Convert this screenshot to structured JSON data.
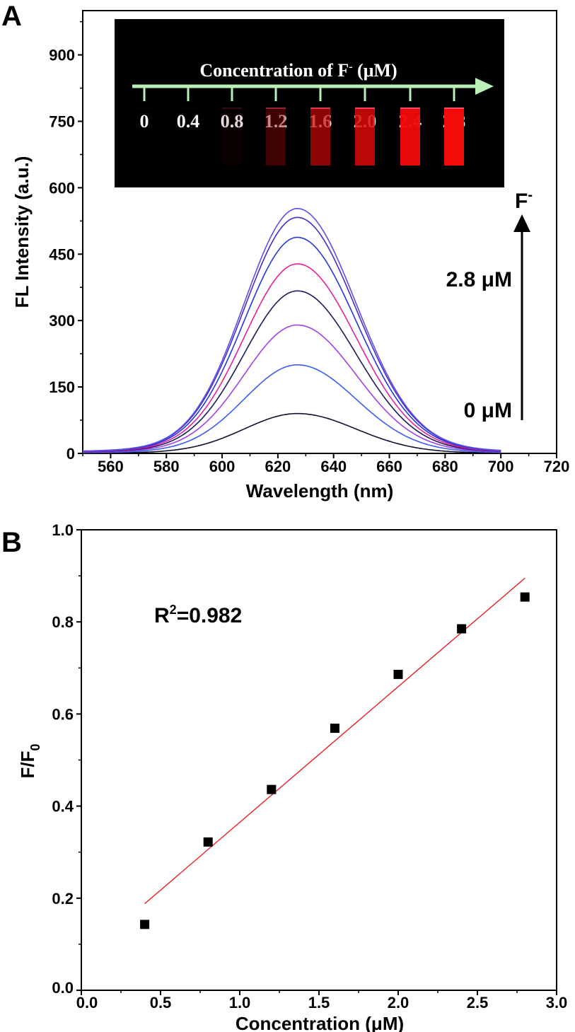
{
  "chart_data": [
    {
      "type": "line",
      "panel_label": "A",
      "xlabel": "Wavelength (nm)",
      "ylabel": "FL Intensity (a.u.)",
      "xlim": [
        550,
        720
      ],
      "ylim": [
        0,
        1000
      ],
      "xticks": [
        560,
        580,
        600,
        620,
        640,
        660,
        680,
        700,
        720
      ],
      "yticks": [
        0,
        150,
        300,
        450,
        600,
        750,
        900
      ],
      "xtick_labels": [
        "560",
        "580",
        "600",
        "620",
        "640",
        "660",
        "680",
        "700",
        "720"
      ],
      "ytick_labels": [
        "0",
        "150",
        "300",
        "450",
        "600",
        "750",
        "900"
      ],
      "data_range": [
        550,
        700
      ],
      "peak_wavelength": 627,
      "series": [
        {
          "concentration": 0,
          "peak": 90,
          "color": "#101030"
        },
        {
          "concentration": 0.4,
          "peak": 200,
          "color": "#3a5cf0"
        },
        {
          "concentration": 0.8,
          "peak": 290,
          "color": "#a040e8"
        },
        {
          "concentration": 1.2,
          "peak": 367,
          "color": "#1a1a5a"
        },
        {
          "concentration": 1.6,
          "peak": 428,
          "color": "#e8209a"
        },
        {
          "concentration": 2.0,
          "peak": 488,
          "color": "#2238d8"
        },
        {
          "concentration": 2.4,
          "peak": 533,
          "color": "#4a2cc0"
        },
        {
          "concentration": 2.8,
          "peak": 553,
          "color": "#5a50e8"
        }
      ],
      "annotations": {
        "arrow_label": "F",
        "arrow_sup": "-",
        "top": "2.8 μM",
        "bottom": "0 μM"
      },
      "inset": {
        "title": "Concentration of F",
        "title_sup": "-",
        "title_unit": " (μM)",
        "arrow_color": "#b8f0b8",
        "labels": [
          "0",
          "0.4",
          "0.8",
          "1.2",
          "1.6",
          "2.0",
          "2.4",
          "2.8"
        ],
        "tube_intensity": [
          0.02,
          0.03,
          0.15,
          0.45,
          0.7,
          0.82,
          0.92,
          0.95
        ]
      }
    },
    {
      "type": "scatter",
      "panel_label": "B",
      "xlabel": "Concentration (μM)",
      "ylabel": "F/F",
      "ylabel_sub": "0",
      "xlim": [
        0,
        3.0
      ],
      "ylim": [
        0,
        1.0
      ],
      "xtick_labels": [
        "0.0",
        "0.5",
        "1.0",
        "1.5",
        "2.0",
        "2.5",
        "3.0"
      ],
      "ytick_labels": [
        "0.0",
        "0.2",
        "0.4",
        "0.6",
        "0.8",
        "1.0"
      ],
      "x": [
        0.4,
        0.8,
        1.2,
        1.6,
        2.0,
        2.4,
        2.8
      ],
      "y": [
        0.143,
        0.322,
        0.436,
        0.569,
        0.686,
        0.785,
        0.854
      ],
      "fit": {
        "x": [
          0.4,
          2.8
        ],
        "y": [
          0.188,
          0.895
        ],
        "color": "#e8101a"
      },
      "annotation": {
        "text_r": "R",
        "sup": "2",
        "text_value": "=0.982"
      }
    }
  ]
}
